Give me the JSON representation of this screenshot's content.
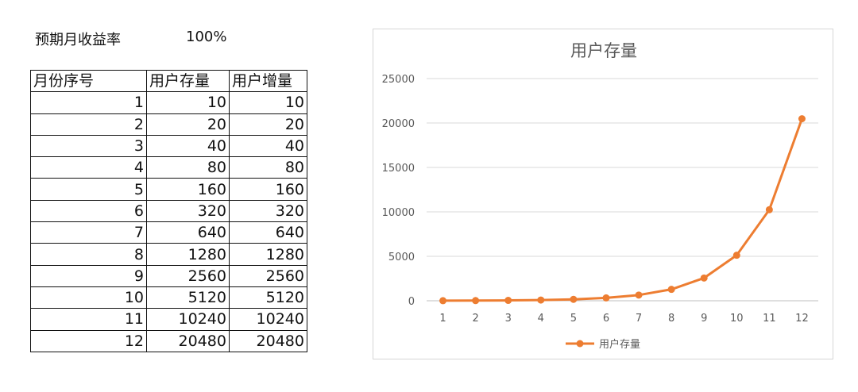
{
  "header": {
    "rate_label": "预期月收益率",
    "rate_value": "100%"
  },
  "table": {
    "columns": [
      "月份序号",
      "用户存量",
      "用户增量"
    ],
    "rows": [
      [
        "1",
        "10",
        "10"
      ],
      [
        "2",
        "20",
        "20"
      ],
      [
        "3",
        "40",
        "40"
      ],
      [
        "4",
        "80",
        "80"
      ],
      [
        "5",
        "160",
        "160"
      ],
      [
        "6",
        "320",
        "320"
      ],
      [
        "7",
        "640",
        "640"
      ],
      [
        "8",
        "1280",
        "1280"
      ],
      [
        "9",
        "2560",
        "2560"
      ],
      [
        "10",
        "5120",
        "5120"
      ],
      [
        "11",
        "10240",
        "10240"
      ],
      [
        "12",
        "20480",
        "20480"
      ]
    ]
  },
  "chart_data": {
    "type": "line",
    "title": "用户存量",
    "categories": [
      "1",
      "2",
      "3",
      "4",
      "5",
      "6",
      "7",
      "8",
      "9",
      "10",
      "11",
      "12"
    ],
    "series": [
      {
        "name": "用户存量",
        "values": [
          10,
          20,
          40,
          80,
          160,
          320,
          640,
          1280,
          2560,
          5120,
          10240,
          20480
        ]
      }
    ],
    "yticks": [
      "0",
      "5000",
      "10000",
      "15000",
      "20000",
      "25000"
    ],
    "ylim": [
      0,
      25000
    ],
    "grid": true,
    "legend": "bottom",
    "line_color": "#ED7D31",
    "xlabel": "",
    "ylabel": ""
  }
}
